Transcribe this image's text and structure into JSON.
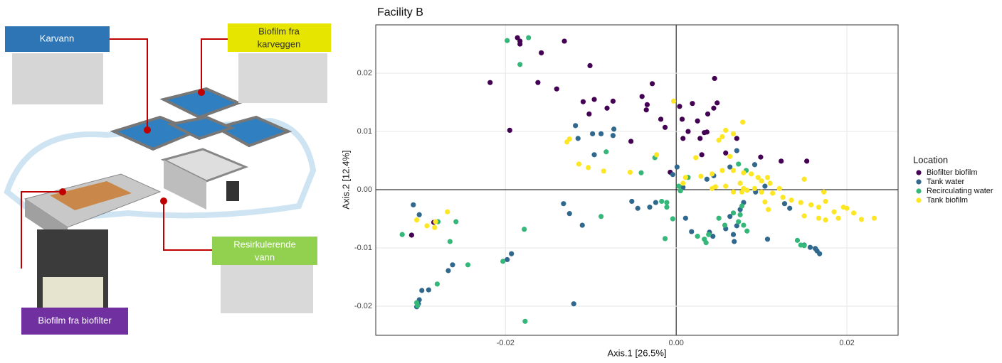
{
  "diagram": {
    "labels": [
      [
        "Karvann"
      ],
      [
        "Biofilm fra",
        "karveggen"
      ],
      [
        "Resirkulerende",
        "vann"
      ],
      [
        "Biofilm fra biofilter"
      ]
    ]
  },
  "chart_data": {
    "type": "scatter",
    "title": "Facility B",
    "x_label": "Axis.1   [26.5%]",
    "y_label": "Axis.2   [12.4%]",
    "legend_title": "Location",
    "legend": "right",
    "grid": true,
    "xlim": [
      -0.0352,
      0.026
    ],
    "ylim": [
      -0.025,
      0.0283
    ],
    "xticks": [
      -0.02,
      {
        "value": 0,
        "label": "0.00"
      },
      0.02
    ],
    "yticks": [
      -0.02,
      -0.01,
      {
        "value": 0,
        "label": "0.00"
      },
      0.01,
      0.02
    ],
    "series": [
      {
        "name": "Biofilter biofilm",
        "color": "#440154",
        "x": [
          -0.0186,
          -0.0183,
          -0.0183,
          -0.0158,
          -0.0131,
          -0.0101,
          -0.0218,
          -0.0162,
          -0.014,
          -0.0195,
          -0.0109,
          -0.0102,
          -0.0096,
          -0.0074,
          -0.0081,
          -0.004,
          -0.0034,
          -0.0028,
          -0.0035,
          -0.0053,
          -0.0013,
          -0.0018,
          0.0004,
          0.0007,
          0.0019,
          0.0025,
          0.0014,
          0.0037,
          0.0044,
          0.0048,
          0.0045,
          0.0033,
          0.0028,
          0.0036,
          0.0058,
          0.003,
          -0.0007,
          0.0099,
          0.0153,
          0.0123,
          -0.031,
          -0.0284,
          0.0071,
          0.0008
        ],
        "values": [
          0.0261,
          0.0255,
          0.025,
          0.0235,
          0.0255,
          0.0213,
          0.0184,
          0.0184,
          0.0173,
          0.0102,
          0.0151,
          0.013,
          0.0155,
          0.0152,
          0.014,
          0.016,
          0.0146,
          0.0182,
          0.0137,
          0.0083,
          0.0107,
          0.0121,
          0.0143,
          0.0121,
          0.0148,
          0.0118,
          0.01,
          0.013,
          0.014,
          0.0149,
          0.0191,
          0.0098,
          0.0088,
          0.0099,
          0.0063,
          0.006,
          0.003,
          0.0056,
          0.0049,
          0.0049,
          -0.0078,
          -0.0056,
          0.0088,
          0.0088
        ]
      },
      {
        "name": "Tank water",
        "color": "#31688e",
        "x": [
          -0.0118,
          -0.0098,
          -0.0088,
          -0.0073,
          -0.0074,
          -0.0115,
          -0.0096,
          0.0001,
          -0.0004,
          0.0008,
          0.0036,
          0.0044,
          0.0063,
          0.0071,
          0.0092,
          -0.0132,
          -0.0125,
          -0.011,
          -0.0052,
          -0.0045,
          -0.0031,
          -0.0024,
          0.0011,
          0.0018,
          0.0039,
          0.0043,
          0.0058,
          0.0063,
          0.0067,
          0.0071,
          0.0075,
          0.0079,
          0.0068,
          0.0107,
          0.0127,
          0.0133,
          0.015,
          0.0157,
          0.0163,
          0.0165,
          0.0168,
          -0.0193,
          -0.0198,
          -0.0262,
          -0.0267,
          -0.029,
          -0.0298,
          -0.0302,
          -0.0301,
          -0.0304,
          -0.0308,
          -0.0301,
          -0.012,
          0.0093,
          0.0104
        ],
        "values": [
          0.011,
          0.0096,
          0.0096,
          0.0104,
          0.0093,
          0.0088,
          0.006,
          0.0039,
          0.0026,
          0.0004,
          0.0018,
          0.0024,
          0.0039,
          0.0067,
          0.0043,
          -0.0024,
          -0.0041,
          -0.0061,
          -0.002,
          -0.0032,
          -0.003,
          -0.0022,
          -0.0049,
          -0.0072,
          -0.0073,
          -0.008,
          -0.0067,
          -0.0046,
          -0.0077,
          -0.0062,
          -0.0034,
          -0.0022,
          -0.0089,
          -0.0085,
          -0.0024,
          -0.0032,
          -0.0095,
          -0.0099,
          -0.0101,
          -0.0105,
          -0.011,
          -0.011,
          -0.012,
          -0.0129,
          -0.0139,
          -0.0172,
          -0.0173,
          -0.0196,
          -0.0189,
          -0.0201,
          -0.0026,
          -0.0043,
          -0.0196,
          -0.0004,
          0.0006
        ]
      },
      {
        "name": "Recirculating water",
        "color": "#35b779",
        "x": [
          -0.0198,
          -0.0173,
          -0.0183,
          -0.0082,
          -0.0041,
          -0.0025,
          0.0014,
          0.0003,
          0.0005,
          -0.0017,
          -0.0011,
          -0.0004,
          -0.0011,
          -0.0013,
          0.0025,
          0.0033,
          0.0035,
          0.0038,
          0.005,
          0.0057,
          0.0073,
          0.0079,
          0.0083,
          0.0075,
          0.0077,
          0.0067,
          0.0073,
          0.0082,
          0.0142,
          0.0146,
          0.015,
          -0.0088,
          -0.0178,
          -0.0203,
          -0.0244,
          -0.0258,
          -0.0265,
          -0.028,
          -0.0304,
          -0.0303,
          -0.0321,
          -0.0177,
          -0.0279
        ],
        "values": [
          0.0256,
          0.0261,
          0.0215,
          0.0065,
          0.0029,
          0.0055,
          0.0021,
          0.0006,
          -0.0002,
          -0.002,
          -0.003,
          -0.005,
          -0.0022,
          -0.0084,
          -0.008,
          -0.0085,
          -0.0091,
          -0.0077,
          -0.0049,
          -0.0061,
          -0.0055,
          -0.0061,
          -0.0071,
          -0.0043,
          -0.0028,
          -0.004,
          0.0044,
          0.0033,
          -0.0087,
          -0.0095,
          -0.0096,
          -0.0046,
          -0.0068,
          -0.0123,
          -0.0129,
          -0.0055,
          -0.0089,
          -0.0162,
          -0.0194,
          -0.0199,
          -0.0077,
          -0.0226,
          -0.0055
        ]
      },
      {
        "name": "Tank biofilm",
        "color": "#fde725",
        "x": [
          -0.0003,
          0.0078,
          0.0058,
          0.0054,
          0.0067,
          0.005,
          -0.0125,
          -0.0128,
          -0.0023,
          0.0023,
          0.0063,
          -0.0114,
          -0.0103,
          -0.0085,
          -0.0054,
          0.0011,
          0.0029,
          0.0042,
          0.0054,
          0.0067,
          0.0079,
          0.0088,
          0.0096,
          0.01,
          0.011,
          0.0121,
          0.0075,
          0.0083,
          0.0092,
          0.0042,
          0.0008,
          0.0058,
          0.0067,
          0.0079,
          0.01,
          0.0113,
          0.0125,
          0.0135,
          0.0146,
          0.0158,
          0.0167,
          0.0173,
          0.0175,
          0.0185,
          0.0196,
          0.02,
          0.0217,
          0.0232,
          0.0208,
          0.019,
          0.015,
          0.0167,
          0.0175,
          0.0108,
          0.015,
          0.0104,
          -0.0268,
          -0.0292,
          -0.0283,
          -0.0282,
          -0.0304,
          0.0107,
          0.0046,
          0.0077
        ],
        "values": [
          0.0152,
          0.0116,
          0.0102,
          0.0091,
          0.0096,
          0.0085,
          0.0087,
          0.0082,
          0.006,
          0.0055,
          0.0057,
          0.0044,
          0.0038,
          0.0032,
          0.003,
          0.0021,
          0.0023,
          0.0027,
          0.0033,
          0.0033,
          0.0029,
          0.0027,
          0.0021,
          0.0015,
          0.0011,
          0.0002,
          0.0011,
          -0.0001,
          0.0002,
          0.0002,
          0.0011,
          0.0006,
          -0.0004,
          0.0002,
          -0.0004,
          -0.0006,
          -0.0013,
          -0.0018,
          -0.0022,
          -0.0026,
          -0.003,
          -0.0004,
          -0.002,
          -0.0038,
          -0.003,
          -0.0032,
          -0.0051,
          -0.0049,
          -0.004,
          -0.0049,
          -0.0045,
          -0.0049,
          -0.0052,
          -0.0034,
          0.0018,
          -0.0021,
          -0.0038,
          -0.0062,
          -0.0065,
          -0.0055,
          -0.0052,
          0.0021,
          0.0005,
          -0.0004
        ]
      }
    ]
  }
}
